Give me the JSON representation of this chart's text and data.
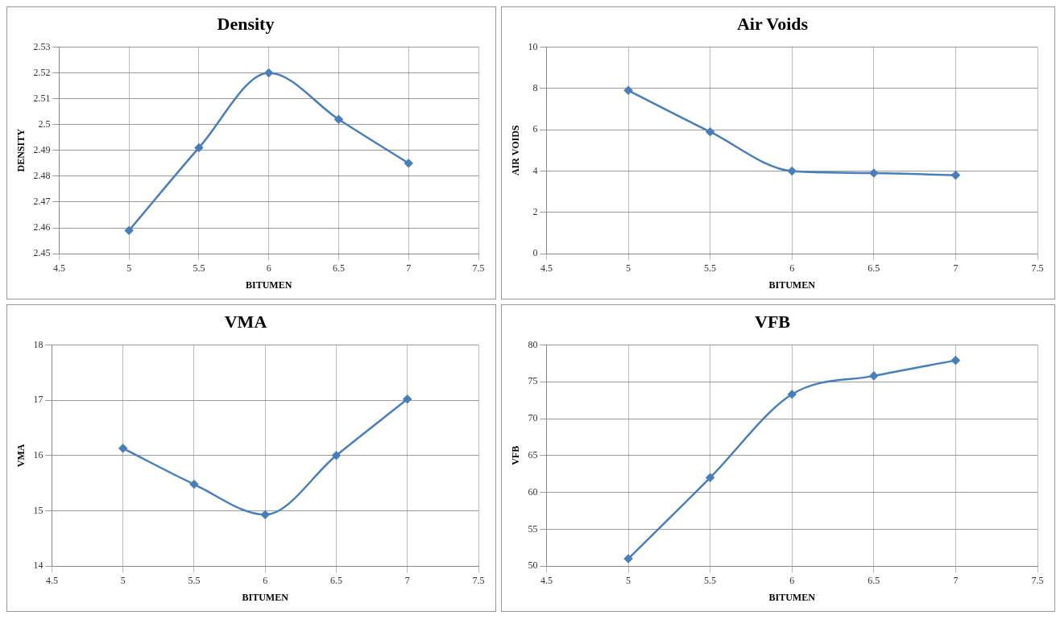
{
  "chart_data": [
    {
      "type": "line",
      "title": "Density",
      "xlabel": "BITUMEN",
      "ylabel": "DENSITY",
      "x": [
        5,
        5.5,
        6,
        6.5,
        7
      ],
      "series": [
        {
          "color": "#4a7ebb",
          "values": [
            2.459,
            2.491,
            2.52,
            2.502,
            2.485
          ]
        }
      ],
      "xlim": [
        4.5,
        7.5
      ],
      "xticks": [
        4.5,
        5,
        5.5,
        6,
        6.5,
        7,
        7.5
      ],
      "ylim": [
        2.45,
        2.53
      ],
      "yticks": [
        2.45,
        2.46,
        2.47,
        2.48,
        2.49,
        2.5,
        2.51,
        2.52,
        2.53
      ],
      "grid": true,
      "marker": "diamond",
      "line_style": "solid",
      "legend": false
    },
    {
      "type": "line",
      "title": "Air Voids",
      "xlabel": "BITUMEN",
      "ylabel": "AIR VOIDS",
      "x": [
        5,
        5.5,
        6,
        6.5,
        7
      ],
      "series": [
        {
          "color": "#4a7ebb",
          "values": [
            7.9,
            5.9,
            4.0,
            3.9,
            3.8
          ]
        }
      ],
      "xlim": [
        4.5,
        7.5
      ],
      "xticks": [
        4.5,
        5,
        5.5,
        6,
        6.5,
        7,
        7.5
      ],
      "ylim": [
        0,
        10
      ],
      "yticks": [
        0,
        2,
        4,
        6,
        8,
        10
      ],
      "grid": true,
      "marker": "diamond",
      "line_style": "solid",
      "legend": false
    },
    {
      "type": "line",
      "title": "VMA",
      "xlabel": "BITUMEN",
      "ylabel": "VMA",
      "x": [
        5,
        5.5,
        6,
        6.5,
        7
      ],
      "series": [
        {
          "color": "#4a7ebb",
          "values": [
            16.13,
            15.48,
            14.93,
            16.0,
            17.02
          ]
        }
      ],
      "xlim": [
        4.5,
        7.5
      ],
      "xticks": [
        4.5,
        5,
        5.5,
        6,
        6.5,
        7,
        7.5
      ],
      "ylim": [
        14,
        18
      ],
      "yticks": [
        14,
        15,
        16,
        17,
        18
      ],
      "grid": true,
      "marker": "diamond",
      "line_style": "solid",
      "legend": false
    },
    {
      "type": "line",
      "title": "VFB",
      "xlabel": "BITUMEN",
      "ylabel": "VFB",
      "x": [
        5,
        5.5,
        6,
        6.5,
        7
      ],
      "series": [
        {
          "color": "#4a7ebb",
          "values": [
            51.0,
            62.0,
            73.3,
            75.8,
            77.9
          ]
        }
      ],
      "xlim": [
        4.5,
        7.5
      ],
      "xticks": [
        4.5,
        5,
        5.5,
        6,
        6.5,
        7,
        7.5
      ],
      "ylim": [
        50,
        80
      ],
      "yticks": [
        50,
        55,
        60,
        65,
        70,
        75,
        80
      ],
      "grid": true,
      "marker": "diamond",
      "line_style": "solid",
      "legend": false
    }
  ]
}
